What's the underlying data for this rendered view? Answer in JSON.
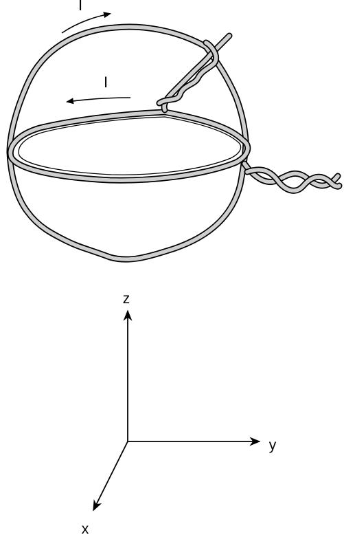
{
  "colors": {
    "wire_fill": "#cfcfcf",
    "outline": "#000000",
    "background": "#ffffff"
  },
  "currents": [
    {
      "label": "I"
    },
    {
      "label": "I"
    }
  ],
  "axes": {
    "z": "z",
    "y": "y",
    "x": "x"
  }
}
